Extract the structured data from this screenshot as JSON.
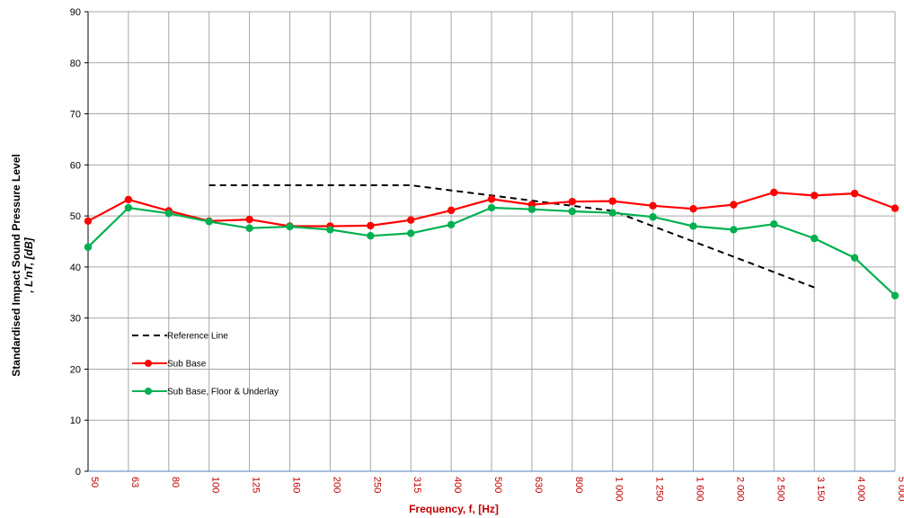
{
  "chart_data": {
    "type": "line",
    "title": "",
    "xlabel": "Frequency, f, [Hz]",
    "ylabel_line1": "Standardised Impact Sound Pressure Level",
    "ylabel_line2": ", L'nT, [dB]",
    "ylim": [
      0,
      90
    ],
    "yticks": [
      "0",
      "10",
      "20",
      "30",
      "40",
      "50",
      "60",
      "70",
      "80",
      "90"
    ],
    "categories": [
      "50",
      "63",
      "80",
      "100",
      "125",
      "160",
      "200",
      "250",
      "315",
      "400",
      "500",
      "630",
      "800",
      "1 000",
      "1 250",
      "1 600",
      "2 000",
      "2 500",
      "3 150",
      "4 000",
      "5 000"
    ],
    "grid": true,
    "legend_position": "lower-left",
    "series": [
      {
        "name": "Reference Line",
        "color": "#000000",
        "style": "dashed",
        "marker": "none",
        "values": [
          null,
          null,
          null,
          56,
          56,
          56,
          56,
          56,
          56,
          55,
          54,
          53,
          52,
          51,
          48,
          45,
          42,
          39,
          36,
          null,
          null
        ]
      },
      {
        "name": "Sub Base",
        "color": "#ff0000",
        "style": "solid",
        "marker": "circle",
        "values": [
          49.0,
          53.2,
          51.0,
          49.0,
          49.3,
          48.0,
          48.0,
          48.1,
          49.2,
          51.1,
          53.3,
          52.2,
          52.8,
          52.9,
          52.0,
          51.4,
          52.2,
          54.6,
          54.0,
          54.4,
          51.5
        ]
      },
      {
        "name": "Sub Base, Floor & Underlay",
        "color": "#00b050",
        "style": "solid",
        "marker": "circle",
        "values": [
          43.9,
          51.6,
          50.5,
          48.9,
          47.6,
          47.9,
          47.3,
          46.1,
          46.6,
          48.3,
          51.6,
          51.3,
          50.9,
          50.6,
          49.8,
          48.0,
          47.3,
          48.4,
          45.6,
          41.8,
          34.4
        ]
      }
    ]
  }
}
